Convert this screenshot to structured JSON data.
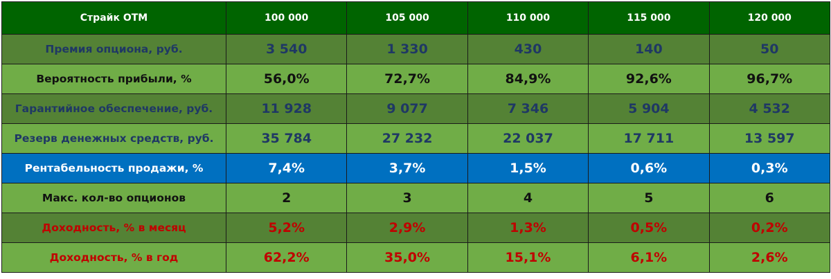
{
  "header": {
    "label": "Страйк ОТМ",
    "strikes": [
      "100 000",
      "105 000",
      "110 000",
      "115 000",
      "120 000"
    ]
  },
  "rows": [
    {
      "label": "Премия опциона, руб.",
      "values": [
        "3 540",
        "1 330",
        "430",
        "140",
        "50"
      ]
    },
    {
      "label": "Вероятность прибыли, %",
      "values": [
        "56,0%",
        "72,7%",
        "84,9%",
        "92,6%",
        "96,7%"
      ]
    },
    {
      "label": "Гарантийное обеспечение, руб.",
      "values": [
        "11 928",
        "9 077",
        "7 346",
        "5 904",
        "4 532"
      ]
    },
    {
      "label": "Резерв денежных средств, руб.",
      "values": [
        "35 784",
        "27 232",
        "22 037",
        "17 711",
        "13 597"
      ]
    },
    {
      "label": "Рентабельность продажи, %",
      "values": [
        "7,4%",
        "3,7%",
        "1,5%",
        "0,6%",
        "0,3%"
      ]
    },
    {
      "label": "Макс. кол-во опционов",
      "values": [
        "2",
        "3",
        "4",
        "5",
        "6"
      ]
    },
    {
      "label": "Доходность, % в месяц",
      "values": [
        "5,2%",
        "2,9%",
        "1,3%",
        "0,5%",
        "0,2%"
      ]
    },
    {
      "label": "Доходность, % в год",
      "values": [
        "62,2%",
        "35,0%",
        "15,1%",
        "6,1%",
        "2,6%"
      ]
    }
  ],
  "colors": {
    "header_bg": "#006400",
    "dark_row_bg": "#548235",
    "light_row_bg": "#70AD47",
    "highlight_row_bg": "#0070C0",
    "navy_text": "#1F3864",
    "red_text": "#C00000"
  }
}
